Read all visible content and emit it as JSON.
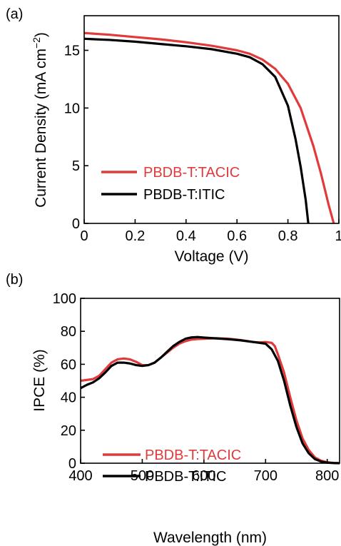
{
  "chart_data": [
    {
      "type": "line",
      "panel_label": "(a)",
      "xlabel": "Voltage (V)",
      "ylabel": "Current Density (mA cm",
      "ylabel_sup": "−2",
      "ylabel_close": ")",
      "xlim": [
        0,
        1.0
      ],
      "ylim": [
        0,
        18
      ],
      "xticks": [
        0,
        0.2,
        0.4,
        0.6,
        0.8,
        1.0
      ],
      "xtick_labels": [
        "0",
        "0.2",
        "0.4",
        "0.6",
        "0.8",
        "1"
      ],
      "yticks": [
        0,
        5,
        10,
        15
      ],
      "ytick_labels": [
        "0",
        "5",
        "10",
        "15"
      ],
      "legend_position": "lower-left",
      "series": [
        {
          "name": "PBDB-T:TACIC",
          "color": "#e03a3a",
          "x": [
            0,
            0.1,
            0.2,
            0.3,
            0.4,
            0.5,
            0.6,
            0.65,
            0.7,
            0.75,
            0.8,
            0.85,
            0.9,
            0.93,
            0.96,
            0.98
          ],
          "y": [
            16.5,
            16.35,
            16.15,
            15.95,
            15.7,
            15.4,
            15.0,
            14.7,
            14.2,
            13.4,
            12.1,
            10.0,
            6.7,
            4.3,
            1.6,
            0
          ]
        },
        {
          "name": "PBDB-T:ITIC",
          "color": "#000000",
          "x": [
            0,
            0.1,
            0.2,
            0.3,
            0.4,
            0.5,
            0.6,
            0.65,
            0.7,
            0.75,
            0.8,
            0.83,
            0.85,
            0.87,
            0.88
          ],
          "y": [
            16.0,
            15.9,
            15.75,
            15.55,
            15.35,
            15.1,
            14.7,
            14.4,
            13.8,
            12.7,
            10.2,
            7.3,
            4.9,
            2.0,
            0
          ]
        }
      ]
    },
    {
      "type": "line",
      "panel_label": "(b)",
      "xlabel": "Wavelength (nm)",
      "ylabel": "IPCE (%)",
      "xlim": [
        400,
        820
      ],
      "ylim": [
        0,
        100
      ],
      "xticks": [
        400,
        500,
        600,
        700,
        800
      ],
      "xtick_labels": [
        "400",
        "500",
        "600",
        "700",
        "800"
      ],
      "yticks": [
        0,
        20,
        40,
        60,
        80,
        100
      ],
      "ytick_labels": [
        "0",
        "20",
        "40",
        "60",
        "80",
        "100"
      ],
      "legend_position": "lower-left",
      "series": [
        {
          "name": "PBDB-T:TACIC",
          "color": "#e03a3a",
          "x": [
            400,
            410,
            420,
            430,
            440,
            450,
            460,
            470,
            480,
            490,
            500,
            510,
            520,
            530,
            540,
            550,
            560,
            570,
            580,
            590,
            600,
            620,
            640,
            660,
            680,
            690,
            700,
            710,
            715,
            720,
            730,
            740,
            750,
            760,
            770,
            780,
            790,
            800,
            810,
            820
          ],
          "y": [
            50,
            50.5,
            51,
            53,
            57,
            61,
            63,
            63.5,
            63,
            61.5,
            59.5,
            59.5,
            61,
            64,
            67,
            70,
            72.5,
            74,
            75,
            75.3,
            75.5,
            75.8,
            75.5,
            74.7,
            73.5,
            73.3,
            73.5,
            73,
            71,
            66,
            55,
            40,
            26,
            15,
            8,
            3.5,
            1.5,
            0.6,
            0.2,
            0
          ]
        },
        {
          "name": "PBDB-T:ITIC",
          "color": "#000000",
          "x": [
            400,
            410,
            420,
            430,
            440,
            450,
            460,
            470,
            480,
            490,
            500,
            510,
            520,
            530,
            540,
            550,
            560,
            570,
            580,
            590,
            600,
            620,
            640,
            660,
            680,
            700,
            710,
            720,
            730,
            740,
            750,
            760,
            770,
            780,
            790,
            800,
            810,
            820
          ],
          "y": [
            45.5,
            47.5,
            49,
            51.5,
            55,
            59,
            61,
            61,
            60.5,
            59.5,
            59,
            59.5,
            61,
            64,
            67.5,
            71,
            73.5,
            75.5,
            76.3,
            76.5,
            76.2,
            75.7,
            75.2,
            74.5,
            73.5,
            72.5,
            69,
            62,
            50,
            35,
            22,
            12,
            6,
            2.5,
            1,
            0.3,
            0.1,
            0
          ]
        }
      ]
    }
  ]
}
